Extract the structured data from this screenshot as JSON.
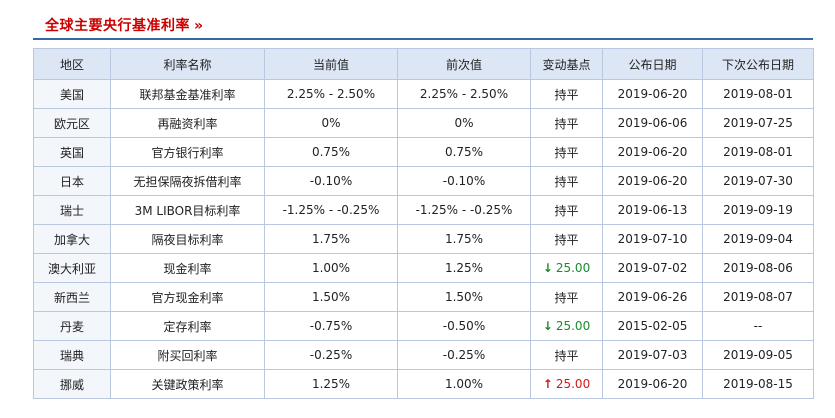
{
  "header": {
    "title": "全球主要央行基准利率",
    "more": "»"
  },
  "colors": {
    "title_red": "#cc0000",
    "header_bg": "#dde6f5",
    "border": "#b9c7df",
    "down_green": "#1a8a2e",
    "up_red": "#d11a1a"
  },
  "table": {
    "columns": [
      "地区",
      "利率名称",
      "当前值",
      "前次值",
      "变动基点",
      "公布日期",
      "下次公布日期"
    ],
    "rows": [
      {
        "region": "美国",
        "rate_name": "联邦基金基准利率",
        "current": "2.25% - 2.50%",
        "previous": "2.25% - 2.50%",
        "change": "持平",
        "change_dir": "flat",
        "date": "2019-06-20",
        "next_date": "2019-08-01"
      },
      {
        "region": "欧元区",
        "rate_name": "再融资利率",
        "current": "0%",
        "previous": "0%",
        "change": "持平",
        "change_dir": "flat",
        "date": "2019-06-06",
        "next_date": "2019-07-25"
      },
      {
        "region": "英国",
        "rate_name": "官方银行利率",
        "current": "0.75%",
        "previous": "0.75%",
        "change": "持平",
        "change_dir": "flat",
        "date": "2019-06-20",
        "next_date": "2019-08-01"
      },
      {
        "region": "日本",
        "rate_name": "无担保隔夜拆借利率",
        "current": "-0.10%",
        "previous": "-0.10%",
        "change": "持平",
        "change_dir": "flat",
        "date": "2019-06-20",
        "next_date": "2019-07-30"
      },
      {
        "region": "瑞士",
        "rate_name": "3M LIBOR目标利率",
        "current": "-1.25% - -0.25%",
        "previous": "-1.25% - -0.25%",
        "change": "持平",
        "change_dir": "flat",
        "date": "2019-06-13",
        "next_date": "2019-09-19"
      },
      {
        "region": "加拿大",
        "rate_name": "隔夜目标利率",
        "current": "1.75%",
        "previous": "1.75%",
        "change": "持平",
        "change_dir": "flat",
        "date": "2019-07-10",
        "next_date": "2019-09-04"
      },
      {
        "region": "澳大利亚",
        "rate_name": "现金利率",
        "current": "1.00%",
        "previous": "1.25%",
        "change": "25.00",
        "change_dir": "down",
        "date": "2019-07-02",
        "next_date": "2019-08-06"
      },
      {
        "region": "新西兰",
        "rate_name": "官方现金利率",
        "current": "1.50%",
        "previous": "1.50%",
        "change": "持平",
        "change_dir": "flat",
        "date": "2019-06-26",
        "next_date": "2019-08-07"
      },
      {
        "region": "丹麦",
        "rate_name": "定存利率",
        "current": "-0.75%",
        "previous": "-0.50%",
        "change": "25.00",
        "change_dir": "down",
        "date": "2015-02-05",
        "next_date": "--"
      },
      {
        "region": "瑞典",
        "rate_name": "附买回利率",
        "current": "-0.25%",
        "previous": "-0.25%",
        "change": "持平",
        "change_dir": "flat",
        "date": "2019-07-03",
        "next_date": "2019-09-05"
      },
      {
        "region": "挪威",
        "rate_name": "关键政策利率",
        "current": "1.25%",
        "previous": "1.00%",
        "change": "25.00",
        "change_dir": "up",
        "date": "2019-06-20",
        "next_date": "2019-08-15"
      }
    ]
  }
}
